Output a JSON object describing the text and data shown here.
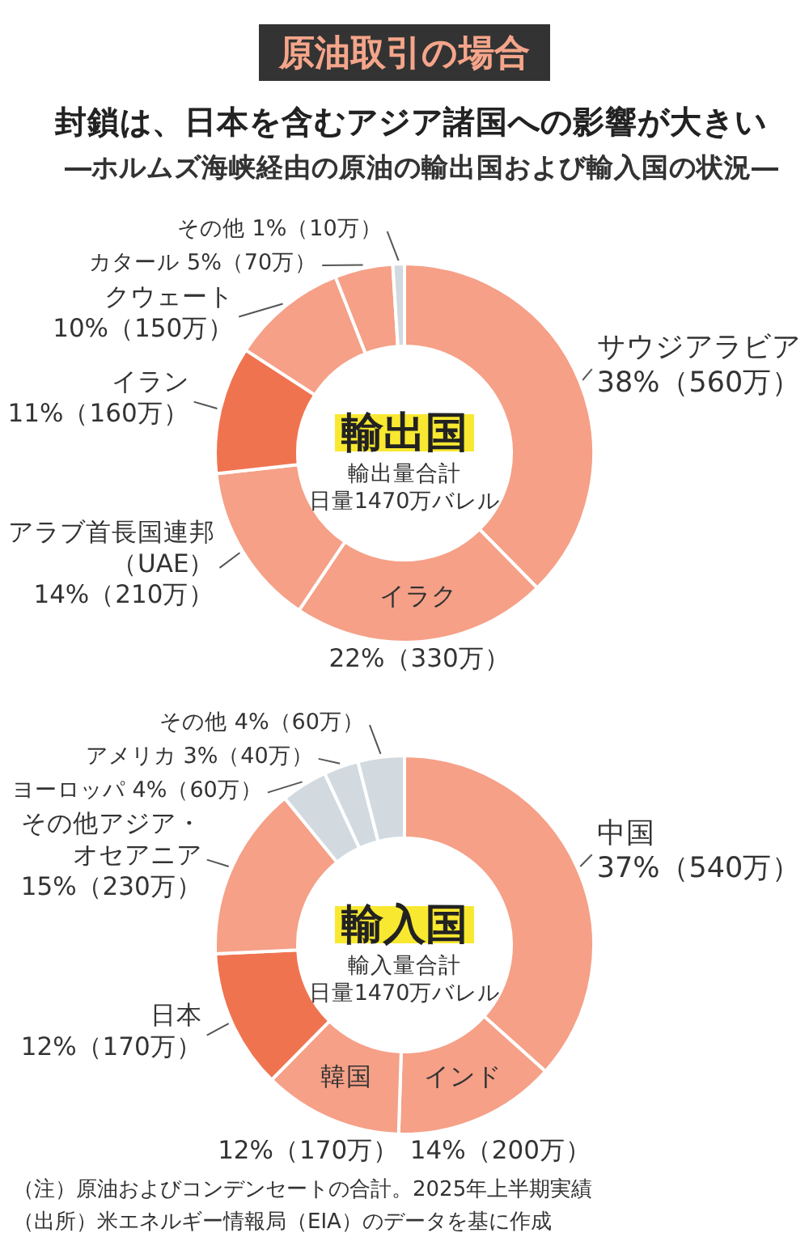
{
  "chart_data": [
    {
      "type": "other",
      "title": "封鎖は、日本を含むアジア諸国への影響が大きい",
      "subtitle": "―ホルムズ海峡経由の原油の輸出国および輸入国の状況―",
      "annotations": [
        "原油取引の場合"
      ]
    },
    {
      "type": "donut",
      "title": "輸出国",
      "annotations": [
        "輸出量合計",
        "日量1470万バレル"
      ],
      "categories": [
        "サウジアラビア",
        "イラク",
        "アラブ首長国連邦（UAE）",
        "イラン",
        "クウェート",
        "カタール",
        "その他"
      ],
      "values": [
        38,
        22,
        14,
        11,
        10,
        5,
        1
      ],
      "colors": [
        "#f5a087",
        "#f5a087",
        "#f5a087",
        "#f07350",
        "#f5a087",
        "#f5a087",
        "#d2dae0"
      ],
      "value_labels": [
        "38%（560万）",
        "22%（330万）",
        "14%（210万）",
        "11%（160万）",
        "10%（150万）",
        "5%（70万）",
        "1%（10万）"
      ]
    },
    {
      "type": "donut",
      "title": "輸入国",
      "annotations": [
        "輸入量合計",
        "日量1470万バレル"
      ],
      "categories": [
        "中国",
        "インド",
        "韓国",
        "日本",
        "その他アジア・オセアニア",
        "ヨーロッパ",
        "アメリカ",
        "その他"
      ],
      "values": [
        37,
        14,
        12,
        12,
        15,
        4,
        3,
        4
      ],
      "colors": [
        "#f5a087",
        "#f5a087",
        "#f5a087",
        "#f07350",
        "#f5a087",
        "#d2dae0",
        "#d2dae0",
        "#d2dae0"
      ],
      "value_labels": [
        "37%（540万）",
        "14%（200万）",
        "12%（170万）",
        "12%（170万）",
        "15%（230万）",
        "4%（60万）",
        "3%（40万）",
        "4%（60万）"
      ]
    },
    {
      "type": "other",
      "annotations": [
        "（注）原油およびコンデンセートの合計。2025年上半期実績",
        "（出所）米エネルギー情報局（EIA）のデータを基に作成"
      ]
    }
  ]
}
